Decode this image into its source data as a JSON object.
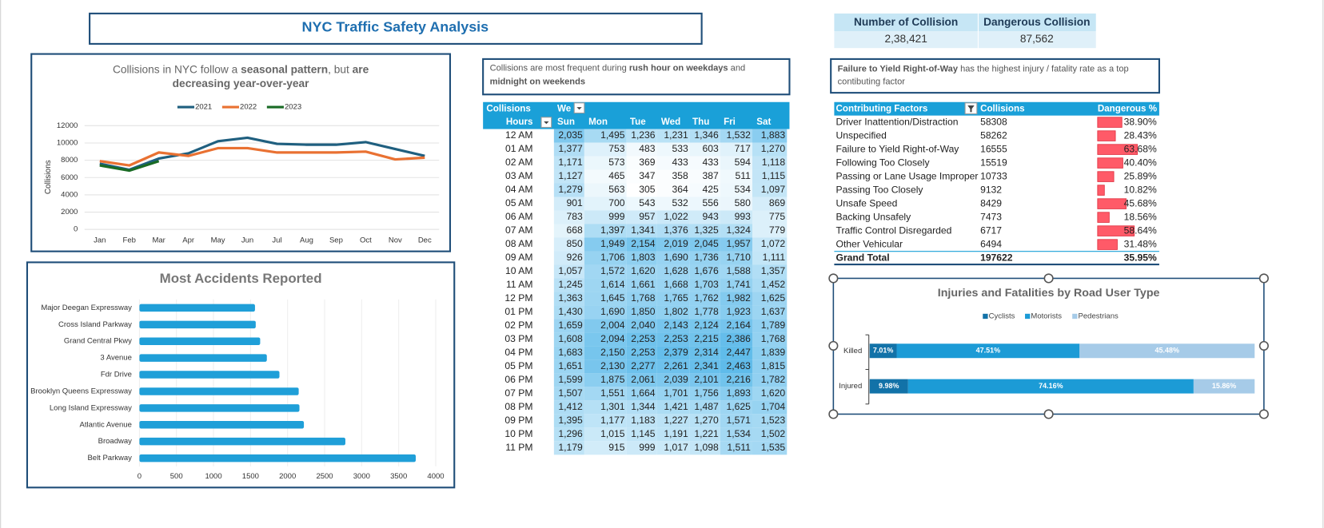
{
  "header": {
    "title": "NYC Traffic Safety Analysis"
  },
  "kpis": [
    {
      "label": "Number of Collision",
      "value": "2,38,421"
    },
    {
      "label": "Dangerous Collision",
      "value": "87,562"
    }
  ],
  "chart_data": [
    {
      "type": "line",
      "title": [
        "Collisions in NYC follow a ",
        "seasonal pattern",
        ", but ",
        "are",
        "decreasing year-over-year"
      ],
      "y_label": "Collisions",
      "categories": [
        "Jan",
        "Feb",
        "Mar",
        "Apr",
        "May",
        "Jun",
        "Jul",
        "Aug",
        "Sep",
        "Oct",
        "Nov",
        "Dec"
      ],
      "series": [
        {
          "name": "2021",
          "color": "#1f5f7f",
          "values": [
            7600,
            6900,
            8200,
            8800,
            10200,
            10600,
            9900,
            9800,
            9800,
            10100,
            9300,
            8500
          ]
        },
        {
          "name": "2022",
          "color": "#e97132",
          "values": [
            7900,
            7400,
            8900,
            8500,
            9400,
            9400,
            8900,
            8900,
            8900,
            9000,
            8100,
            8300
          ]
        },
        {
          "name": "2023",
          "color": "#196b24",
          "values": [
            7400,
            6800,
            7900,
            null,
            null,
            null,
            null,
            null,
            null,
            null,
            null,
            null
          ]
        }
      ],
      "ylim": [
        0,
        12000
      ],
      "yticks": [
        0,
        2000,
        4000,
        6000,
        8000,
        10000,
        12000
      ],
      "grid": true,
      "legend": "top"
    },
    {
      "type": "hbar",
      "title": "Most Accidents Reported",
      "categories": [
        "Major Deegan Expressway",
        "Cross Island Parkway",
        "Grand Central Pkwy",
        "3 Avenue",
        "Fdr Drive",
        "Brooklyn Queens Expressway",
        "Long Island Expressway",
        "Atlantic Avenue",
        "Broadway",
        "Belt Parkway"
      ],
      "values": [
        1560,
        1570,
        1630,
        1720,
        1890,
        2150,
        2160,
        2220,
        2780,
        3730
      ],
      "color": "#1f9fd8",
      "xlim": [
        0,
        4000
      ],
      "xticks": [
        0,
        500,
        1000,
        1500,
        2000,
        2500,
        3000,
        3500,
        4000
      ],
      "grid": true
    },
    {
      "type": "stacked_hbar",
      "title": "Injuries and Fatalities by Road User Type",
      "categories": [
        "Killed",
        "Injured"
      ],
      "series": [
        {
          "name": "Cyclists",
          "color": "#1272a8",
          "values": [
            7.01,
            9.98
          ],
          "value_labels": [
            "7.01%",
            "9.98%"
          ]
        },
        {
          "name": "Motorists",
          "color": "#1c9bd6",
          "values": [
            47.51,
            74.16
          ],
          "value_labels": [
            "47.51%",
            "74.16%"
          ]
        },
        {
          "name": "Pedestrians",
          "color": "#a6cbe8",
          "values": [
            45.48,
            15.86
          ],
          "value_labels": [
            "45.48%",
            "15.86%"
          ]
        }
      ],
      "xlim": [
        0,
        100
      ],
      "legend": "top"
    }
  ],
  "hourly_table": {
    "note": [
      "Collisions are most frequent during ",
      "rush hour on weekdays",
      " and",
      "midnight on weekends"
    ],
    "header": [
      "Collisions",
      "We"
    ],
    "columns": [
      "Hours",
      "Sun",
      "Mon",
      "Tue",
      "Wed",
      "Thu",
      "Fri",
      "Sat"
    ],
    "rows": [
      [
        "12 AM",
        "2,035",
        "1,495",
        "1,236",
        "1,231",
        "1,346",
        "1,532",
        "1,883"
      ],
      [
        "01 AM",
        "1,377",
        "753",
        "483",
        "533",
        "603",
        "717",
        "1,270"
      ],
      [
        "02 AM",
        "1,171",
        "573",
        "369",
        "433",
        "433",
        "594",
        "1,118"
      ],
      [
        "03 AM",
        "1,127",
        "465",
        "347",
        "358",
        "387",
        "511",
        "1,115"
      ],
      [
        "04 AM",
        "1,279",
        "563",
        "305",
        "364",
        "425",
        "534",
        "1,097"
      ],
      [
        "05 AM",
        "901",
        "700",
        "543",
        "532",
        "556",
        "580",
        "869"
      ],
      [
        "06 AM",
        "783",
        "999",
        "957",
        "1,022",
        "943",
        "993",
        "775"
      ],
      [
        "07 AM",
        "668",
        "1,397",
        "1,341",
        "1,376",
        "1,325",
        "1,324",
        "779"
      ],
      [
        "08 AM",
        "850",
        "1,949",
        "2,154",
        "2,019",
        "2,045",
        "1,957",
        "1,072"
      ],
      [
        "09 AM",
        "926",
        "1,706",
        "1,803",
        "1,690",
        "1,736",
        "1,710",
        "1,111"
      ],
      [
        "10 AM",
        "1,057",
        "1,572",
        "1,620",
        "1,628",
        "1,676",
        "1,588",
        "1,357"
      ],
      [
        "11 AM",
        "1,245",
        "1,614",
        "1,661",
        "1,668",
        "1,703",
        "1,741",
        "1,452"
      ],
      [
        "12 PM",
        "1,363",
        "1,645",
        "1,768",
        "1,765",
        "1,762",
        "1,982",
        "1,625"
      ],
      [
        "01 PM",
        "1,430",
        "1,690",
        "1,850",
        "1,802",
        "1,778",
        "1,923",
        "1,637"
      ],
      [
        "02 PM",
        "1,659",
        "2,004",
        "2,040",
        "2,143",
        "2,124",
        "2,164",
        "1,789"
      ],
      [
        "03 PM",
        "1,608",
        "2,094",
        "2,253",
        "2,253",
        "2,215",
        "2,386",
        "1,768"
      ],
      [
        "04 PM",
        "1,683",
        "2,150",
        "2,253",
        "2,379",
        "2,314",
        "2,447",
        "1,839"
      ],
      [
        "05 PM",
        "1,651",
        "2,130",
        "2,277",
        "2,261",
        "2,341",
        "2,463",
        "1,815"
      ],
      [
        "06 PM",
        "1,599",
        "1,875",
        "2,061",
        "2,039",
        "2,101",
        "2,216",
        "1,782"
      ],
      [
        "07 PM",
        "1,507",
        "1,551",
        "1,664",
        "1,701",
        "1,756",
        "1,893",
        "1,620"
      ],
      [
        "08 PM",
        "1,412",
        "1,301",
        "1,344",
        "1,421",
        "1,487",
        "1,625",
        "1,704"
      ],
      [
        "09 PM",
        "1,395",
        "1,177",
        "1,183",
        "1,227",
        "1,270",
        "1,571",
        "1,523"
      ],
      [
        "10 PM",
        "1,296",
        "1,015",
        "1,145",
        "1,191",
        "1,221",
        "1,534",
        "1,502"
      ],
      [
        "11 PM",
        "1,179",
        "915",
        "999",
        "1,017",
        "1,098",
        "1,511",
        "1,535"
      ]
    ]
  },
  "factors_table": {
    "note": [
      "Failure to Yield Right-of-Way",
      " has the highest injury / fatality rate as a top",
      "contibuting factor"
    ],
    "columns": [
      "Contributing Factors",
      "Collisions",
      "Dangerous %"
    ],
    "rows": [
      [
        "Driver Inattention/Distraction",
        58308,
        "38.90%"
      ],
      [
        "Unspecified",
        58262,
        "28.43%"
      ],
      [
        "Failure to Yield Right-of-Way",
        16555,
        "63.68%"
      ],
      [
        "Following Too Closely",
        15519,
        "40.40%"
      ],
      [
        "Passing or Lane Usage Improper",
        10733,
        "25.89%"
      ],
      [
        "Passing Too Closely",
        9132,
        "10.82%"
      ],
      [
        "Unsafe Speed",
        8429,
        "45.68%"
      ],
      [
        "Backing Unsafely",
        7473,
        "18.56%"
      ],
      [
        "Traffic Control Disregarded",
        6717,
        "58.64%"
      ],
      [
        "Other Vehicular",
        6494,
        "31.48%"
      ]
    ],
    "total": [
      "Grand Total",
      197622,
      "35.95%"
    ]
  }
}
